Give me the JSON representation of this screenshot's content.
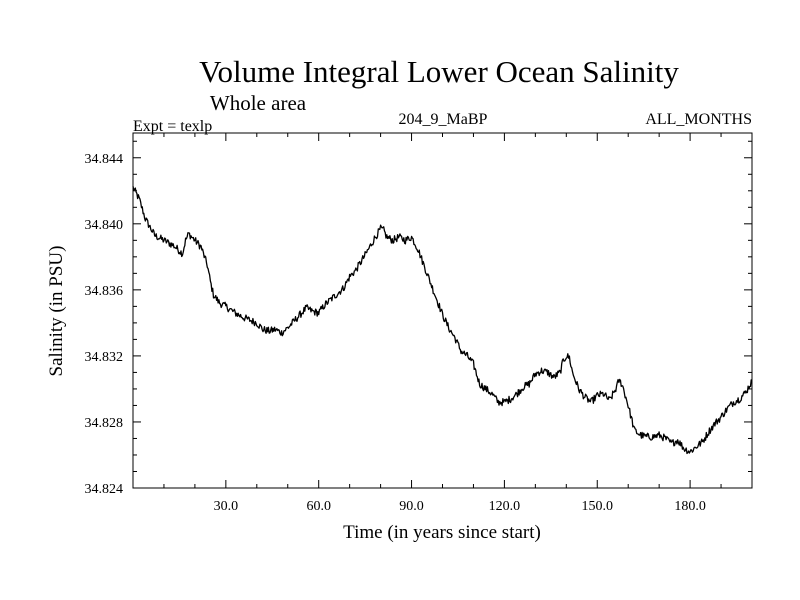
{
  "chart_data": {
    "type": "line",
    "title": "Volume Integral Lower Ocean Salinity",
    "subtitle": "Whole area",
    "experiment": "Expt = texlp",
    "run_id": "204_9_MaBP",
    "months": "ALL_MONTHS",
    "xlabel": "Time (in years since start)",
    "ylabel": "Salinity (in PSU)",
    "xlim": [
      0,
      200
    ],
    "ylim": [
      34.824,
      34.8455
    ],
    "x_ticks": [
      30,
      60,
      90,
      120,
      150,
      180
    ],
    "x_tick_labels": [
      "30.0",
      "60.0",
      "90.0",
      "120.0",
      "150.0",
      "180.0"
    ],
    "y_ticks": [
      34.824,
      34.828,
      34.832,
      34.836,
      34.84,
      34.844
    ],
    "y_tick_labels": [
      "34.824",
      "34.828",
      "34.832",
      "34.836",
      "34.840",
      "34.844"
    ],
    "grid": false,
    "series": [
      {
        "name": "Salinity",
        "color": "#000000",
        "x": [
          0,
          2,
          4,
          7,
          10,
          13,
          16,
          17,
          18,
          20,
          22,
          24,
          25,
          26,
          28,
          30,
          33,
          36,
          40,
          42,
          44,
          46,
          48,
          50,
          52,
          54,
          56,
          58,
          60,
          62,
          65,
          68,
          70,
          72,
          75,
          78,
          80,
          81,
          82,
          84,
          86,
          88,
          90,
          92,
          94,
          96,
          98,
          100,
          102,
          104,
          106,
          108,
          110,
          112,
          114,
          116,
          118,
          120,
          122,
          124,
          126,
          128,
          130,
          132,
          134,
          136,
          138,
          139,
          140,
          141,
          142,
          144,
          146,
          148,
          150,
          152,
          154,
          156,
          157,
          158,
          160,
          162,
          164,
          166,
          168,
          170,
          172,
          174,
          176,
          178,
          180,
          182,
          184,
          186,
          188,
          190,
          192,
          194,
          196,
          198,
          200
        ],
        "values": [
          34.8422,
          34.8415,
          34.8403,
          34.8393,
          34.839,
          34.8387,
          34.8382,
          34.839,
          34.8394,
          34.839,
          34.8386,
          34.8375,
          34.8365,
          34.8357,
          34.8352,
          34.835,
          34.8346,
          34.8343,
          34.834,
          34.8336,
          34.8335,
          34.8336,
          34.8334,
          34.8337,
          34.8341,
          34.8345,
          34.8349,
          34.8347,
          34.8346,
          34.8351,
          34.8356,
          34.8361,
          34.8368,
          34.8372,
          34.8381,
          34.8391,
          34.8397,
          34.8396,
          34.8392,
          34.839,
          34.8392,
          34.839,
          34.8392,
          34.8385,
          34.8375,
          34.8365,
          34.8355,
          34.8345,
          34.8337,
          34.8331,
          34.8323,
          34.832,
          34.8315,
          34.8303,
          34.83,
          34.8297,
          34.8292,
          34.8292,
          34.8294,
          34.8297,
          34.8301,
          34.8303,
          34.8309,
          34.8311,
          34.831,
          34.8307,
          34.831,
          34.8317,
          34.832,
          34.8319,
          34.831,
          34.83,
          34.8295,
          34.8292,
          34.8296,
          34.8297,
          34.8293,
          34.83,
          34.8305,
          34.8303,
          34.829,
          34.8275,
          34.8272,
          34.8271,
          34.8271,
          34.8272,
          34.827,
          34.8267,
          34.8269,
          34.8264,
          34.8262,
          34.8265,
          34.8268,
          34.8274,
          34.8279,
          34.8283,
          34.8288,
          34.8292,
          34.8294,
          34.8298,
          34.8305
        ]
      }
    ]
  }
}
